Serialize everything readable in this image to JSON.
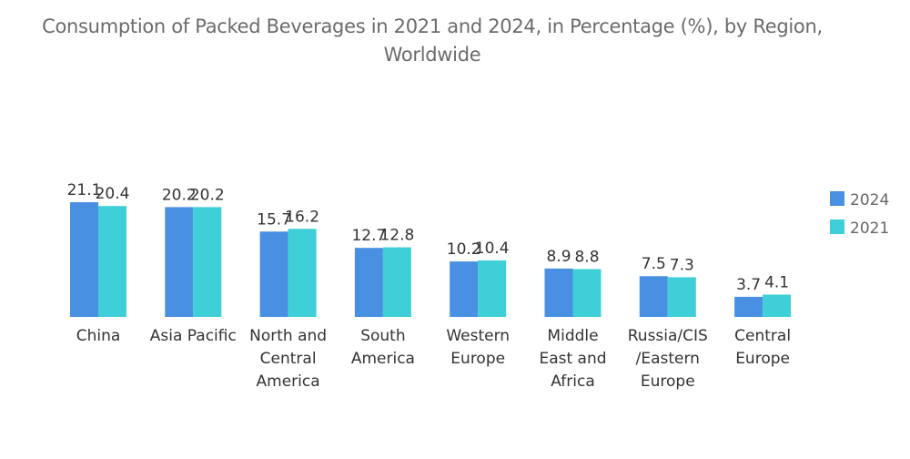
{
  "chart_data": {
    "type": "bar",
    "title": "Consumption of Packed Beverages in 2021 and 2024, in Percentage (%), by Region, Worldwide",
    "xlabel": "",
    "ylabel": "",
    "categories": [
      [
        "China"
      ],
      [
        "Asia Pacific"
      ],
      [
        "North and",
        "Central",
        "America"
      ],
      [
        "South",
        "America"
      ],
      [
        "Western",
        "Europe"
      ],
      [
        "Middle",
        "East and",
        "Africa"
      ],
      [
        "Russia/CIS",
        "/Eastern",
        "Europe"
      ],
      [
        "Central",
        "Europe"
      ]
    ],
    "series": [
      {
        "name": "2024",
        "color": "#4a90e2",
        "values": [
          21.1,
          20.2,
          15.7,
          12.7,
          10.2,
          8.9,
          7.5,
          3.7
        ]
      },
      {
        "name": "2021",
        "color": "#3ecfd8",
        "values": [
          20.4,
          20.2,
          16.2,
          12.8,
          10.4,
          8.8,
          7.3,
          4.1
        ]
      }
    ],
    "ylim": [
      0,
      22
    ],
    "grid": false,
    "data_labels": true,
    "legend_position": "right"
  }
}
